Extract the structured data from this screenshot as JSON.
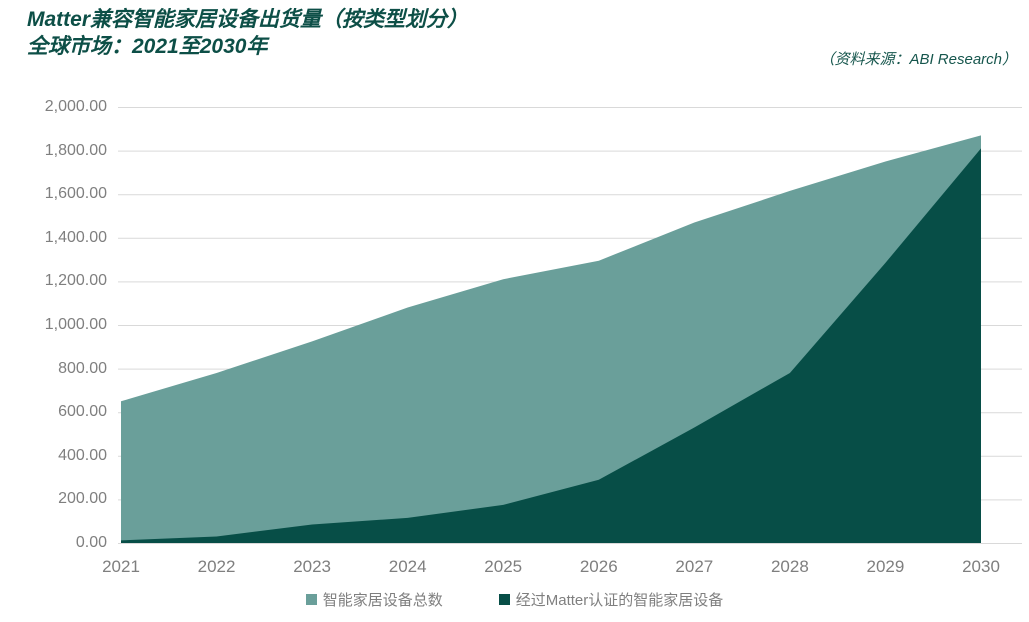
{
  "chart_data": {
    "type": "area",
    "title_line1": "Matter兼容智能家居设备出货量（按类型划分）",
    "title_line2": "全球市场：2021至2030年",
    "source_note": "（资料来源：ABI Research）",
    "categories": [
      "2021",
      "2022",
      "2023",
      "2024",
      "2025",
      "2026",
      "2027",
      "2028",
      "2029",
      "2030"
    ],
    "series": [
      {
        "name": "智能家居设备总数",
        "color": "#6A9F9A",
        "values": [
          650,
          780,
          925,
          1080,
          1210,
          1295,
          1470,
          1615,
          1750,
          1870
        ]
      },
      {
        "name": "经过Matter认证的智能家居设备",
        "color": "#074E47",
        "values": [
          12,
          30,
          85,
          115,
          175,
          290,
          530,
          780,
          1285,
          1810
        ]
      }
    ],
    "series_layout": "overlaid (Matter-certified series is a subset of the total, drawn on top)",
    "xlabel": "",
    "ylabel": "",
    "ylim": [
      0,
      2000
    ],
    "ytick_step": 200,
    "ytick_labels": [
      "0.00",
      "200.00",
      "400.00",
      "600.00",
      "800.00",
      "1,000.00",
      "1,200.00",
      "1,400.00",
      "1,600.00",
      "1,800.00",
      "2,000.00"
    ],
    "grid": true,
    "legend_position": "bottom",
    "colors": {
      "title": "#0D4F47",
      "source_note": "#16564D",
      "axis_text": "#7F7F7F",
      "gridline": "#D9D9D9",
      "legend_text": "#7F7F7F"
    }
  }
}
